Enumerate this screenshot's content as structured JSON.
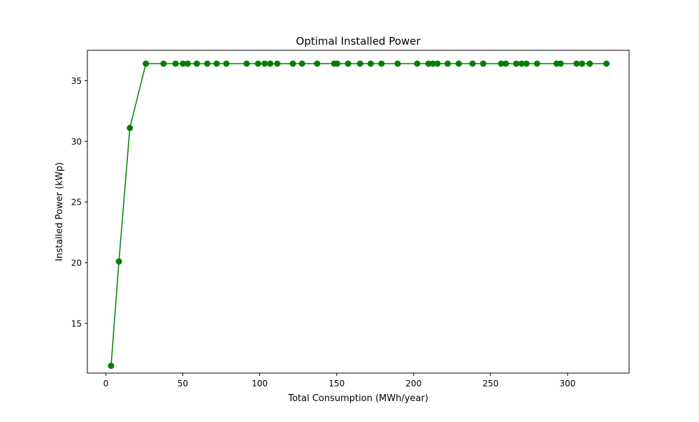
{
  "chart_data": {
    "type": "line",
    "title": "Optimal Installed Power",
    "xlabel": "Total Consumption (MWh/year)",
    "ylabel": "Installed Power (kWp)",
    "xlim": [
      -12,
      340
    ],
    "ylim": [
      10.9,
      37.5
    ],
    "xticks": [
      0,
      50,
      100,
      150,
      200,
      250,
      300
    ],
    "yticks": [
      15,
      20,
      25,
      30,
      35
    ],
    "grid": false,
    "line_color": "#008000",
    "marker": "circle",
    "series": [
      {
        "x": [
          3.4,
          8.5,
          15.6,
          26.0,
          37.5,
          45.3,
          50.1,
          53.2,
          59.1,
          65.9,
          72.0,
          78.3,
          91.5,
          98.9,
          103.2,
          106.8,
          111.4,
          121.5,
          127.5,
          137.3,
          148.4,
          150.3,
          157.4,
          165.2,
          172.1,
          179.1,
          189.6,
          202.3,
          209.6,
          212.4,
          215.5,
          222.1,
          229.3,
          238.3,
          245.2,
          256.9,
          259.9,
          266.7,
          270.1,
          273.3,
          280.2,
          292.9,
          295.5,
          305.9,
          309.4,
          314.4,
          325.3
        ],
        "y": [
          11.5,
          20.1,
          31.1,
          36.4,
          36.4,
          36.4,
          36.4,
          36.4,
          36.4,
          36.4,
          36.4,
          36.4,
          36.4,
          36.4,
          36.4,
          36.4,
          36.4,
          36.4,
          36.4,
          36.4,
          36.4,
          36.4,
          36.4,
          36.4,
          36.4,
          36.4,
          36.4,
          36.4,
          36.4,
          36.4,
          36.4,
          36.4,
          36.4,
          36.4,
          36.4,
          36.4,
          36.4,
          36.4,
          36.4,
          36.4,
          36.4,
          36.4,
          36.4,
          36.4,
          36.4,
          36.4,
          36.4
        ]
      }
    ]
  }
}
